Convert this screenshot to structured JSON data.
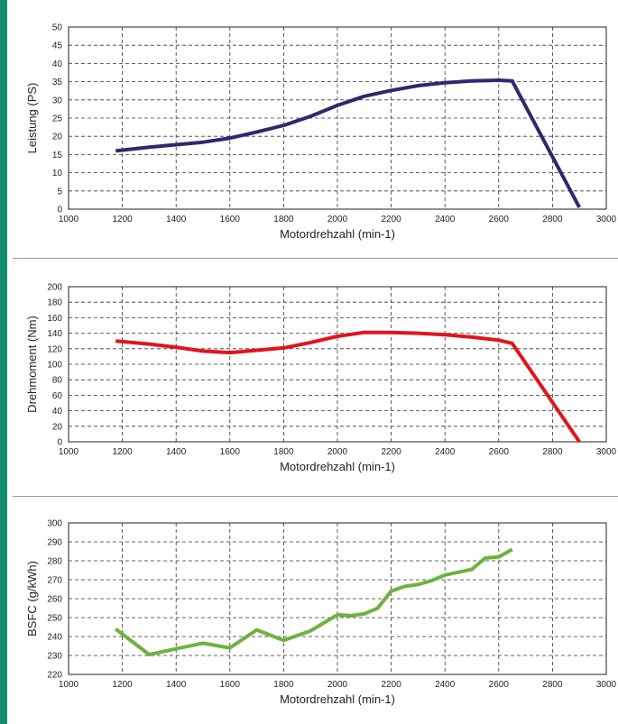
{
  "chart_data": [
    {
      "type": "line",
      "xlabel": "Motordrehzahl (min-1)",
      "ylabel": "Leistung (PS)",
      "xlim": [
        1000,
        3000
      ],
      "ylim": [
        0,
        50
      ],
      "xticks": [
        1000,
        1200,
        1400,
        1600,
        1800,
        2000,
        2200,
        2400,
        2600,
        2800,
        3000
      ],
      "yticks": [
        0,
        5,
        10,
        15,
        20,
        25,
        30,
        35,
        40,
        45,
        50
      ],
      "grid": true,
      "color": "#2b2a6e",
      "series": [
        {
          "x": [
            1175,
            1300,
            1400,
            1500,
            1600,
            1700,
            1800,
            1900,
            2000,
            2100,
            2200,
            2300,
            2400,
            2500,
            2600,
            2650,
            2900
          ],
          "values": [
            16,
            17,
            17.7,
            18.4,
            19.5,
            21.2,
            23,
            25.5,
            28.5,
            31,
            32.6,
            33.9,
            34.7,
            35.2,
            35.4,
            35.2,
            0.5
          ]
        }
      ]
    },
    {
      "type": "line",
      "xlabel": "Motordrehzahl (min-1)",
      "ylabel": "Drehmoment (Nm)",
      "xlim": [
        1000,
        3000
      ],
      "ylim": [
        0,
        200
      ],
      "xticks": [
        1000,
        1200,
        1400,
        1600,
        1800,
        2000,
        2200,
        2400,
        2600,
        2800,
        3000
      ],
      "yticks": [
        0,
        20,
        40,
        60,
        80,
        100,
        120,
        140,
        160,
        180,
        200
      ],
      "grid": true,
      "color": "#e0151b",
      "series": [
        {
          "x": [
            1175,
            1300,
            1400,
            1500,
            1600,
            1700,
            1800,
            1900,
            2000,
            2100,
            2200,
            2300,
            2400,
            2500,
            2600,
            2650,
            2900
          ],
          "values": [
            130,
            126,
            122,
            117,
            115,
            118,
            121,
            128,
            136,
            141,
            141,
            140,
            138,
            135,
            131,
            127,
            0
          ]
        }
      ]
    },
    {
      "type": "line",
      "xlabel": "Motordrehzahl (min-1)",
      "ylabel": "BSFC (g/kWh)",
      "xlim": [
        1000,
        3000
      ],
      "ylim": [
        220,
        300
      ],
      "xticks": [
        1000,
        1200,
        1400,
        1600,
        1800,
        2000,
        2200,
        2400,
        2600,
        2800,
        3000
      ],
      "yticks": [
        220,
        230,
        240,
        250,
        260,
        270,
        280,
        290,
        300
      ],
      "grid": true,
      "color": "#6cb33f",
      "series": [
        {
          "x": [
            1175,
            1300,
            1400,
            1500,
            1600,
            1700,
            1800,
            1900,
            2000,
            2050,
            2100,
            2150,
            2200,
            2250,
            2300,
            2350,
            2400,
            2500,
            2550,
            2600,
            2650
          ],
          "values": [
            244,
            230.5,
            233.5,
            236.5,
            234,
            243.5,
            238,
            243,
            251.5,
            251,
            252,
            255,
            264,
            266.5,
            267.5,
            269.5,
            272.5,
            275.5,
            281.5,
            282,
            286
          ]
        }
      ]
    }
  ]
}
